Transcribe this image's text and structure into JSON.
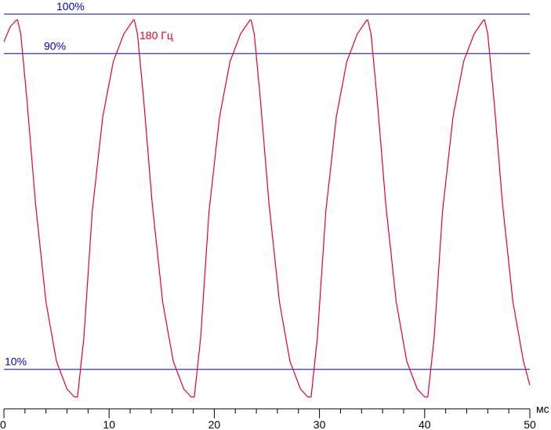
{
  "chart_data": {
    "type": "line",
    "x_unit_label": "мс",
    "xlim": [
      0,
      50
    ],
    "ylim": [
      0,
      100
    ],
    "x_ticks": [
      0,
      10,
      20,
      30,
      40,
      50
    ],
    "x_tick_labels": [
      "0",
      "10",
      "20",
      "30",
      "40",
      "50"
    ],
    "x_minor_step": 2,
    "reference_lines": [
      {
        "label": "100%",
        "value": 100
      },
      {
        "label": "90%",
        "value": 90
      },
      {
        "label": "10%",
        "value": 10
      }
    ],
    "series": [
      {
        "name": "180 Гц",
        "color": "#e8002a",
        "x": [
          0,
          0.6,
          1.2,
          1.3,
          1.6,
          2.2,
          3.0,
          4.0,
          5.0,
          6.0,
          6.7,
          7.0,
          7.6,
          8.4,
          9.4,
          10.4,
          11.4,
          12.3,
          12.4,
          12.7,
          13.3,
          14.1,
          15.1,
          16.1,
          17.1,
          17.8,
          18.1,
          18.7,
          19.5,
          20.5,
          21.5,
          22.5,
          23.4,
          23.5,
          23.8,
          24.4,
          25.2,
          26.2,
          27.2,
          28.2,
          28.9,
          29.2,
          29.8,
          30.6,
          31.6,
          32.6,
          33.6,
          34.5,
          34.6,
          34.9,
          35.5,
          36.3,
          37.3,
          38.3,
          39.3,
          40.0,
          40.3,
          40.9,
          41.7,
          42.7,
          43.7,
          44.7,
          45.6,
          45.7,
          46.0,
          46.6,
          47.4,
          48.4,
          49.4,
          50.0
        ],
        "y": [
          93,
          96.8,
          98.5,
          98.5,
          95,
          78,
          52,
          27,
          12,
          5,
          3,
          3,
          18,
          50,
          74,
          88,
          95,
          98.5,
          98.5,
          95,
          78,
          52,
          27,
          12,
          5,
          3,
          3,
          18,
          50,
          74,
          88,
          95,
          98.5,
          98.5,
          95,
          78,
          52,
          27,
          12,
          5,
          3,
          3,
          18,
          50,
          74,
          88,
          95,
          98.5,
          98.5,
          95,
          78,
          52,
          27,
          12,
          5,
          3,
          3,
          18,
          50,
          74,
          88,
          95,
          98.5,
          98.5,
          95,
          78,
          52,
          27,
          12,
          6
        ]
      }
    ],
    "colors": {
      "reference": "#0000cc",
      "axis": "#000000"
    }
  }
}
